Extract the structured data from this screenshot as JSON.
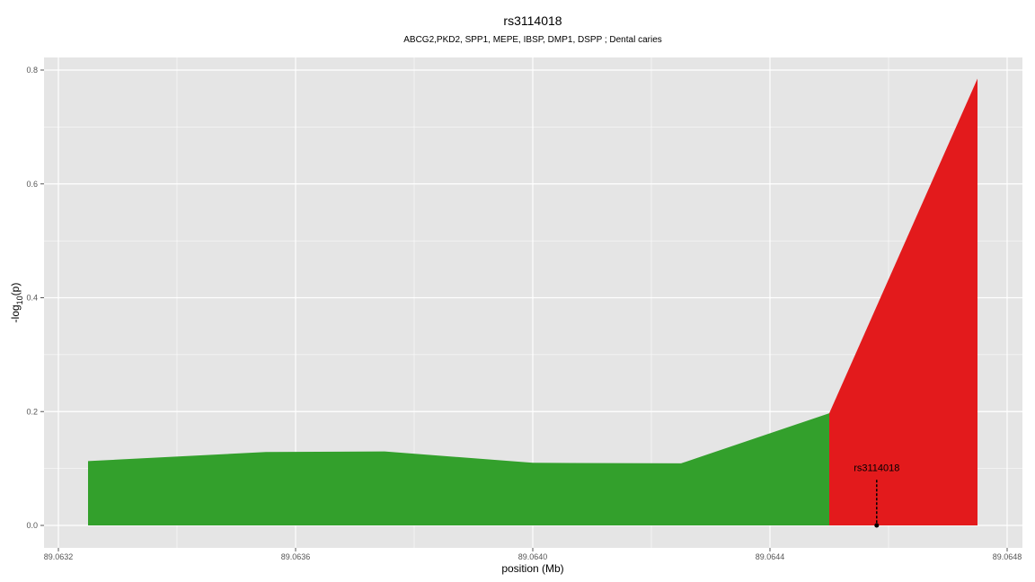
{
  "chart_data": {
    "type": "area",
    "title": "rs3114018",
    "subtitle": "ABCG2,PKD2, SPP1, MEPE, IBSP, DMP1, DSPP ; Dental caries",
    "xlabel": "position (Mb)",
    "ylabel_main": "-log",
    "ylabel_sub": "10",
    "ylabel_end": "(p)",
    "xlim": [
      89.0632,
      89.0648
    ],
    "ylim": [
      0,
      0.8
    ],
    "x_ticks": [
      89.0632,
      89.0636,
      89.064,
      89.0644,
      89.0648
    ],
    "x_tick_labels": [
      "89.0632",
      "89.0636",
      "89.0640",
      "89.0644",
      "89.0648"
    ],
    "y_ticks": [
      0.0,
      0.2,
      0.4,
      0.6,
      0.8
    ],
    "y_tick_labels": [
      "0.0",
      "0.2",
      "0.4",
      "0.6",
      "0.8"
    ],
    "grid": true,
    "series": [
      {
        "color": "#33a02c",
        "x": [
          89.06325,
          89.06355,
          89.06375,
          89.064,
          89.06425,
          89.0645
        ],
        "y": [
          0.113,
          0.129,
          0.13,
          0.11,
          0.109,
          0.197
        ]
      },
      {
        "color": "#e31a1c",
        "x": [
          89.0645,
          89.06475
        ],
        "y": [
          0.197,
          0.785
        ]
      }
    ],
    "annotation": {
      "label": "rs3114018",
      "x": 89.06458,
      "y": 0.0,
      "line_top": 0.08
    },
    "colors": {
      "panel_bg": "#e5e5e5",
      "grid": "#ffffff",
      "green": "#33a02c",
      "red": "#e31a1c"
    }
  }
}
